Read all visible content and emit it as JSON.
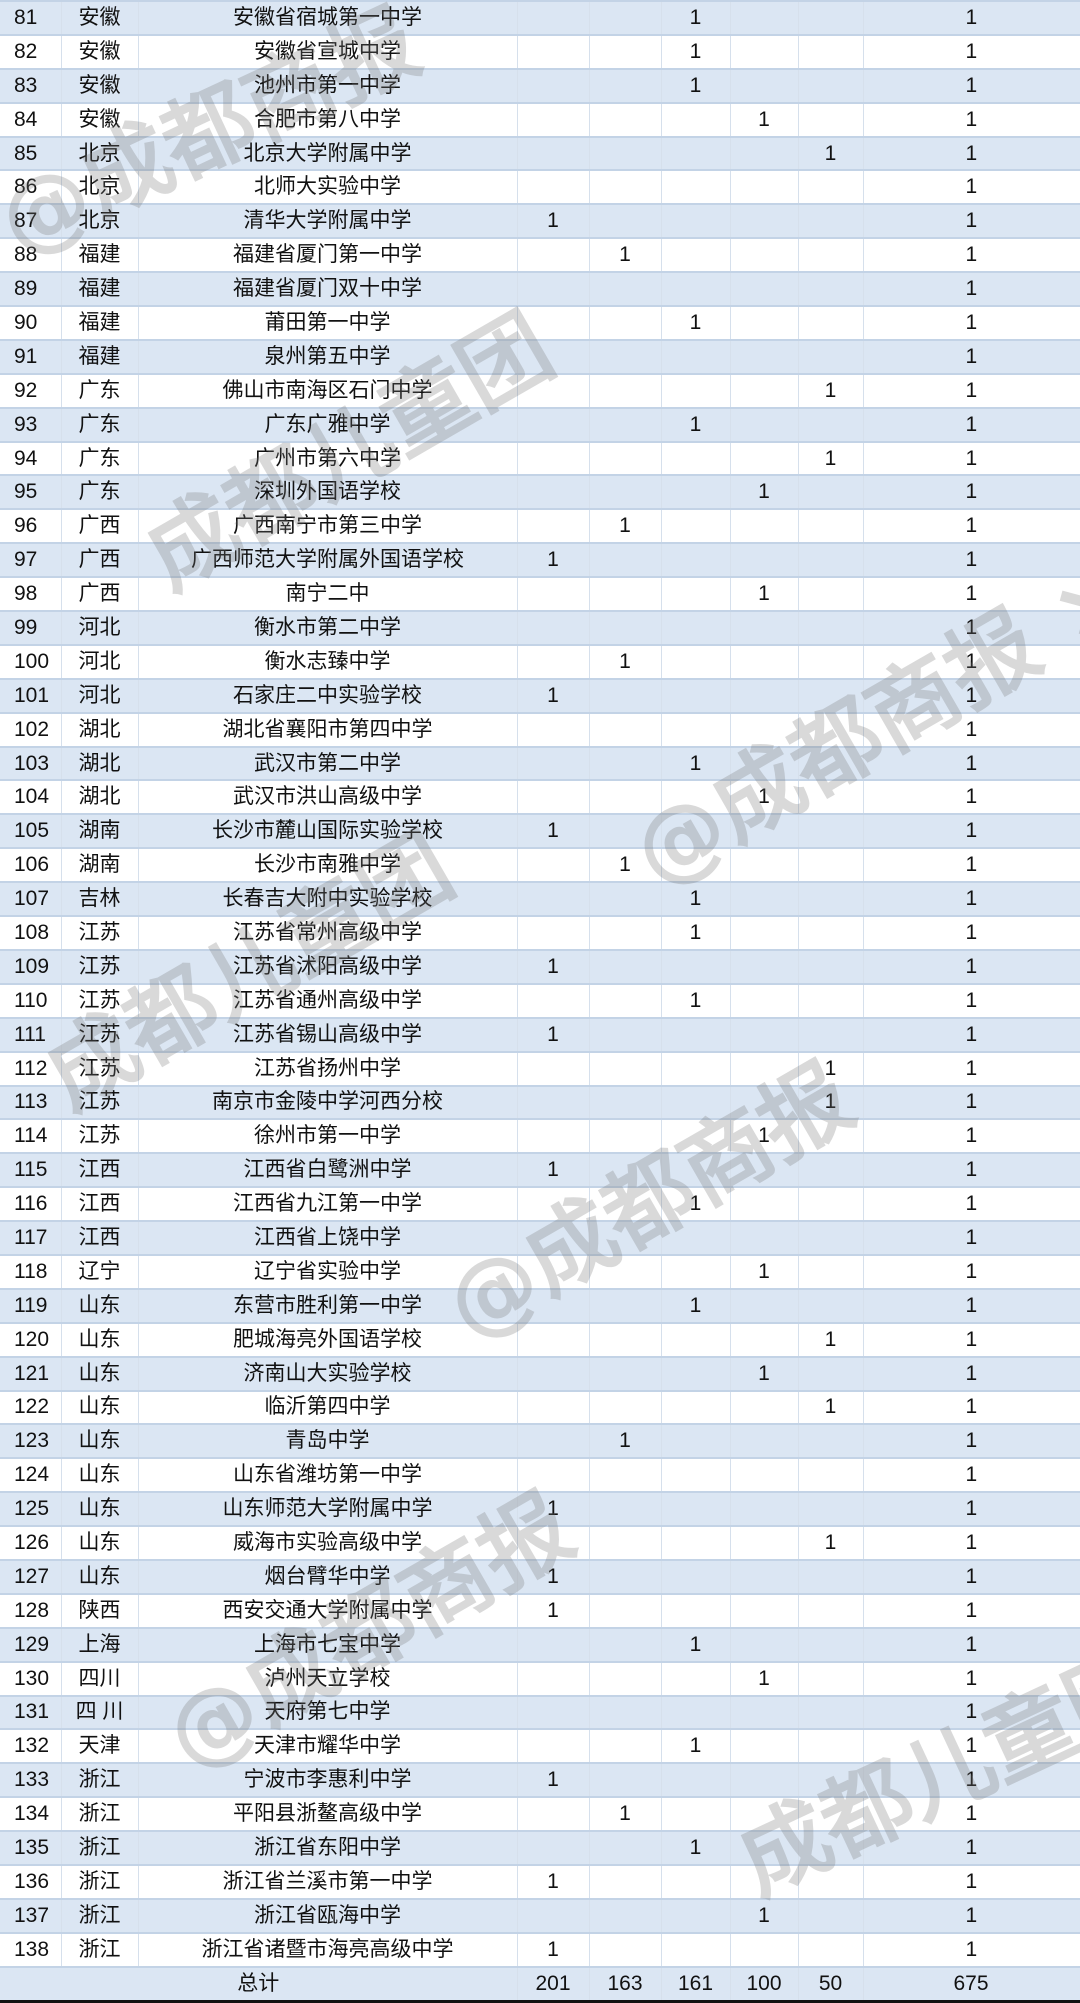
{
  "table": {
    "rows": [
      {
        "no": "81",
        "province": "安徽",
        "school": "安徽省宿城第一中学",
        "values": [
          "",
          "",
          "1",
          "",
          "",
          "1"
        ]
      },
      {
        "no": "82",
        "province": "安徽",
        "school": "安徽省宣城中学",
        "values": [
          "",
          "",
          "1",
          "",
          "",
          "1"
        ]
      },
      {
        "no": "83",
        "province": "安徽",
        "school": "池州市第一中学",
        "values": [
          "",
          "",
          "1",
          "",
          "",
          "1"
        ]
      },
      {
        "no": "84",
        "province": "安徽",
        "school": "合肥市第八中学",
        "values": [
          "",
          "",
          "",
          "1",
          "",
          "1"
        ]
      },
      {
        "no": "85",
        "province": "北京",
        "school": "北京大学附属中学",
        "values": [
          "",
          "",
          "",
          "",
          "1",
          "1"
        ]
      },
      {
        "no": "86",
        "province": "北京",
        "school": "北师大实验中学",
        "values": [
          "",
          "",
          "",
          "",
          "",
          "1"
        ]
      },
      {
        "no": "87",
        "province": "北京",
        "school": "清华大学附属中学",
        "values": [
          "1",
          "",
          "",
          "",
          "",
          "1"
        ]
      },
      {
        "no": "88",
        "province": "福建",
        "school": "福建省厦门第一中学",
        "values": [
          "",
          "1",
          "",
          "",
          "",
          "1"
        ]
      },
      {
        "no": "89",
        "province": "福建",
        "school": "福建省厦门双十中学",
        "values": [
          "",
          "",
          "",
          "",
          "",
          "1"
        ]
      },
      {
        "no": "90",
        "province": "福建",
        "school": "莆田第一中学",
        "values": [
          "",
          "",
          "1",
          "",
          "",
          "1"
        ]
      },
      {
        "no": "91",
        "province": "福建",
        "school": "泉州第五中学",
        "values": [
          "",
          "",
          "",
          "",
          "",
          "1"
        ]
      },
      {
        "no": "92",
        "province": "广东",
        "school": "佛山市南海区石门中学",
        "values": [
          "",
          "",
          "",
          "",
          "1",
          "1"
        ]
      },
      {
        "no": "93",
        "province": "广东",
        "school": "广东广雅中学",
        "values": [
          "",
          "",
          "1",
          "",
          "",
          "1"
        ]
      },
      {
        "no": "94",
        "province": "广东",
        "school": "广州市第六中学",
        "values": [
          "",
          "",
          "",
          "",
          "1",
          "1"
        ]
      },
      {
        "no": "95",
        "province": "广东",
        "school": "深圳外国语学校",
        "values": [
          "",
          "",
          "",
          "1",
          "",
          "1"
        ]
      },
      {
        "no": "96",
        "province": "广西",
        "school": "广西南宁市第三中学",
        "values": [
          "",
          "1",
          "",
          "",
          "",
          "1"
        ]
      },
      {
        "no": "97",
        "province": "广西",
        "school": "广西师范大学附属外国语学校",
        "values": [
          "1",
          "",
          "",
          "",
          "",
          "1"
        ]
      },
      {
        "no": "98",
        "province": "广西",
        "school": "南宁二中",
        "values": [
          "",
          "",
          "",
          "1",
          "",
          "1"
        ]
      },
      {
        "no": "99",
        "province": "河北",
        "school": "衡水市第二中学",
        "values": [
          "",
          "",
          "",
          "",
          "",
          "1"
        ]
      },
      {
        "no": "100",
        "province": "河北",
        "school": "衡水志臻中学",
        "values": [
          "",
          "1",
          "",
          "",
          "",
          "1"
        ]
      },
      {
        "no": "101",
        "province": "河北",
        "school": "石家庄二中实验学校",
        "values": [
          "1",
          "",
          "",
          "",
          "",
          "1"
        ]
      },
      {
        "no": "102",
        "province": "湖北",
        "school": "湖北省襄阳市第四中学",
        "values": [
          "",
          "",
          "",
          "",
          "",
          "1"
        ]
      },
      {
        "no": "103",
        "province": "湖北",
        "school": "武汉市第二中学",
        "values": [
          "",
          "",
          "1",
          "",
          "",
          "1"
        ]
      },
      {
        "no": "104",
        "province": "湖北",
        "school": "武汉市洪山高级中学",
        "values": [
          "",
          "",
          "",
          "1",
          "",
          "1"
        ]
      },
      {
        "no": "105",
        "province": "湖南",
        "school": "长沙市麓山国际实验学校",
        "values": [
          "1",
          "",
          "",
          "",
          "",
          "1"
        ]
      },
      {
        "no": "106",
        "province": "湖南",
        "school": "长沙市南雅中学",
        "values": [
          "",
          "1",
          "",
          "",
          "",
          "1"
        ]
      },
      {
        "no": "107",
        "province": "吉林",
        "school": "长春吉大附中实验学校",
        "values": [
          "",
          "",
          "1",
          "",
          "",
          "1"
        ]
      },
      {
        "no": "108",
        "province": "江苏",
        "school": "江苏省常州高级中学",
        "values": [
          "",
          "",
          "1",
          "",
          "",
          "1"
        ]
      },
      {
        "no": "109",
        "province": "江苏",
        "school": "江苏省沭阳高级中学",
        "values": [
          "1",
          "",
          "",
          "",
          "",
          "1"
        ]
      },
      {
        "no": "110",
        "province": "江苏",
        "school": "江苏省通州高级中学",
        "values": [
          "",
          "",
          "1",
          "",
          "",
          "1"
        ]
      },
      {
        "no": "111",
        "province": "江苏",
        "school": "江苏省锡山高级中学",
        "values": [
          "1",
          "",
          "",
          "",
          "",
          "1"
        ]
      },
      {
        "no": "112",
        "province": "江苏",
        "school": "江苏省扬州中学",
        "values": [
          "",
          "",
          "",
          "",
          "1",
          "1"
        ]
      },
      {
        "no": "113",
        "province": "江苏",
        "school": "南京市金陵中学河西分校",
        "values": [
          "",
          "",
          "",
          "",
          "1",
          "1"
        ]
      },
      {
        "no": "114",
        "province": "江苏",
        "school": "徐州市第一中学",
        "values": [
          "",
          "",
          "",
          "1",
          "",
          "1"
        ]
      },
      {
        "no": "115",
        "province": "江西",
        "school": "江西省白鹭洲中学",
        "values": [
          "1",
          "",
          "",
          "",
          "",
          "1"
        ]
      },
      {
        "no": "116",
        "province": "江西",
        "school": "江西省九江第一中学",
        "values": [
          "",
          "",
          "1",
          "",
          "",
          "1"
        ]
      },
      {
        "no": "117",
        "province": "江西",
        "school": "江西省上饶中学",
        "values": [
          "",
          "",
          "",
          "",
          "",
          "1"
        ]
      },
      {
        "no": "118",
        "province": "辽宁",
        "school": "辽宁省实验中学",
        "values": [
          "",
          "",
          "",
          "1",
          "",
          "1"
        ]
      },
      {
        "no": "119",
        "province": "山东",
        "school": "东营市胜利第一中学",
        "values": [
          "",
          "",
          "1",
          "",
          "",
          "1"
        ]
      },
      {
        "no": "120",
        "province": "山东",
        "school": "肥城海亮外国语学校",
        "values": [
          "",
          "",
          "",
          "",
          "1",
          "1"
        ]
      },
      {
        "no": "121",
        "province": "山东",
        "school": "济南山大实验学校",
        "values": [
          "",
          "",
          "",
          "1",
          "",
          "1"
        ]
      },
      {
        "no": "122",
        "province": "山东",
        "school": "临沂第四中学",
        "values": [
          "",
          "",
          "",
          "",
          "1",
          "1"
        ]
      },
      {
        "no": "123",
        "province": "山东",
        "school": "青岛中学",
        "values": [
          "",
          "1",
          "",
          "",
          "",
          "1"
        ]
      },
      {
        "no": "124",
        "province": "山东",
        "school": "山东省潍坊第一中学",
        "values": [
          "",
          "",
          "",
          "",
          "",
          "1"
        ]
      },
      {
        "no": "125",
        "province": "山东",
        "school": "山东师范大学附属中学",
        "values": [
          "1",
          "",
          "",
          "",
          "",
          "1"
        ]
      },
      {
        "no": "126",
        "province": "山东",
        "school": "威海市实验高级中学",
        "values": [
          "",
          "",
          "",
          "",
          "1",
          "1"
        ]
      },
      {
        "no": "127",
        "province": "山东",
        "school": "烟台臂华中学",
        "values": [
          "1",
          "",
          "",
          "",
          "",
          "1"
        ]
      },
      {
        "no": "128",
        "province": "陕西",
        "school": "西安交通大学附属中学",
        "values": [
          "1",
          "",
          "",
          "",
          "",
          "1"
        ]
      },
      {
        "no": "129",
        "province": "上海",
        "school": "上海市七宝中学",
        "values": [
          "",
          "",
          "1",
          "",
          "",
          "1"
        ]
      },
      {
        "no": "130",
        "province": "四川",
        "school": "泸州天立学校",
        "values": [
          "",
          "",
          "",
          "1",
          "",
          "1"
        ]
      },
      {
        "no": "131",
        "province": "四 川",
        "school": "天府第七中学",
        "values": [
          "",
          "",
          "",
          "",
          "",
          "1"
        ]
      },
      {
        "no": "132",
        "province": "天津",
        "school": "天津市耀华中学",
        "values": [
          "",
          "",
          "1",
          "",
          "",
          "1"
        ]
      },
      {
        "no": "133",
        "province": "浙江",
        "school": "宁波市李惠利中学",
        "values": [
          "1",
          "",
          "",
          "",
          "",
          "1"
        ]
      },
      {
        "no": "134",
        "province": "浙江",
        "school": "平阳县浙鳌高级中学",
        "values": [
          "",
          "1",
          "",
          "",
          "",
          "1"
        ]
      },
      {
        "no": "135",
        "province": "浙江",
        "school": "浙江省东阳中学",
        "values": [
          "",
          "",
          "1",
          "",
          "",
          "1"
        ]
      },
      {
        "no": "136",
        "province": "浙江",
        "school": "浙江省兰溪市第一中学",
        "values": [
          "1",
          "",
          "",
          "",
          "",
          "1"
        ]
      },
      {
        "no": "137",
        "province": "浙江",
        "school": "浙江省瓯海中学",
        "values": [
          "",
          "",
          "",
          "1",
          "",
          "1"
        ]
      },
      {
        "no": "138",
        "province": "浙江",
        "school": "浙江省诸暨市海亮高级中学",
        "values": [
          "1",
          "",
          "",
          "",
          "",
          "1"
        ]
      }
    ],
    "total": {
      "label": "总计",
      "values": [
        "201",
        "163",
        "161",
        "100",
        "50",
        "675"
      ]
    }
  },
  "watermarks": [
    "@成都商报",
    "成都儿童团",
    "@成都商报 ×",
    "成都儿童团",
    "@成都商报"
  ],
  "colors": {
    "row_stripe": "#dbe6f3",
    "row_border": "#c3d3e6"
  }
}
